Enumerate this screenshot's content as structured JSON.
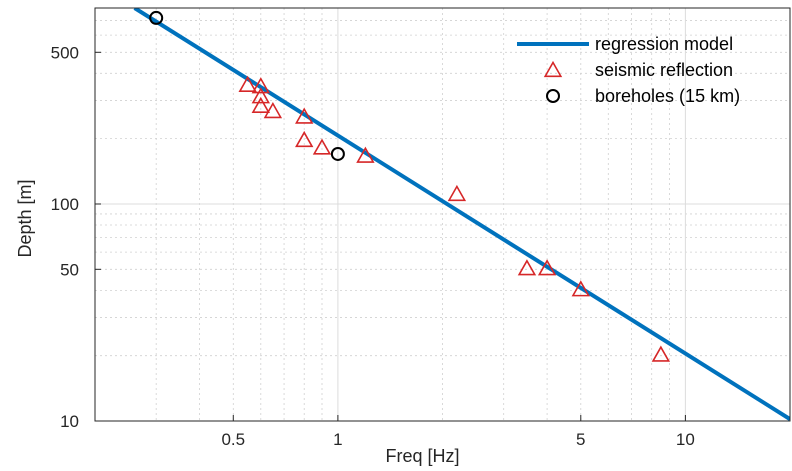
{
  "chart_data": {
    "type": "scatter",
    "xlabel": "Freq [Hz]",
    "ylabel": "Depth [m]",
    "xscale": "log",
    "yscale": "log",
    "xlim": [
      0.2,
      20
    ],
    "ylim": [
      10,
      800
    ],
    "grid": true,
    "legend_position": "top-right",
    "x_ticks": [
      {
        "value": 0.5,
        "label": "0.5"
      },
      {
        "value": 1,
        "label": "1"
      },
      {
        "value": 5,
        "label": "5"
      },
      {
        "value": 10,
        "label": "10"
      }
    ],
    "y_ticks": [
      {
        "value": 10,
        "label": "10"
      },
      {
        "value": 50,
        "label": "50"
      },
      {
        "value": 100,
        "label": "100"
      },
      {
        "value": 500,
        "label": "500"
      }
    ],
    "series": [
      {
        "name": "regression model",
        "kind": "line",
        "color": "#0072bd",
        "x": [
          0.26,
          20
        ],
        "y": [
          800,
          10.2
        ]
      },
      {
        "name": "seismic reflection",
        "kind": "marker",
        "marker": "triangle",
        "color": "#d62728",
        "x": [
          0.55,
          0.6,
          0.6,
          0.6,
          0.65,
          0.8,
          0.8,
          0.9,
          1.2,
          2.2,
          3.5,
          4.0,
          5.0,
          8.5
        ],
        "y": [
          350,
          345,
          310,
          280,
          265,
          250,
          195,
          180,
          165,
          110,
          50,
          50,
          40,
          20
        ]
      },
      {
        "name": "boreholes (15 km)",
        "kind": "marker",
        "marker": "circle",
        "color": "#000000",
        "x": [
          0.3,
          1.0
        ],
        "y": [
          720,
          170
        ]
      }
    ]
  }
}
